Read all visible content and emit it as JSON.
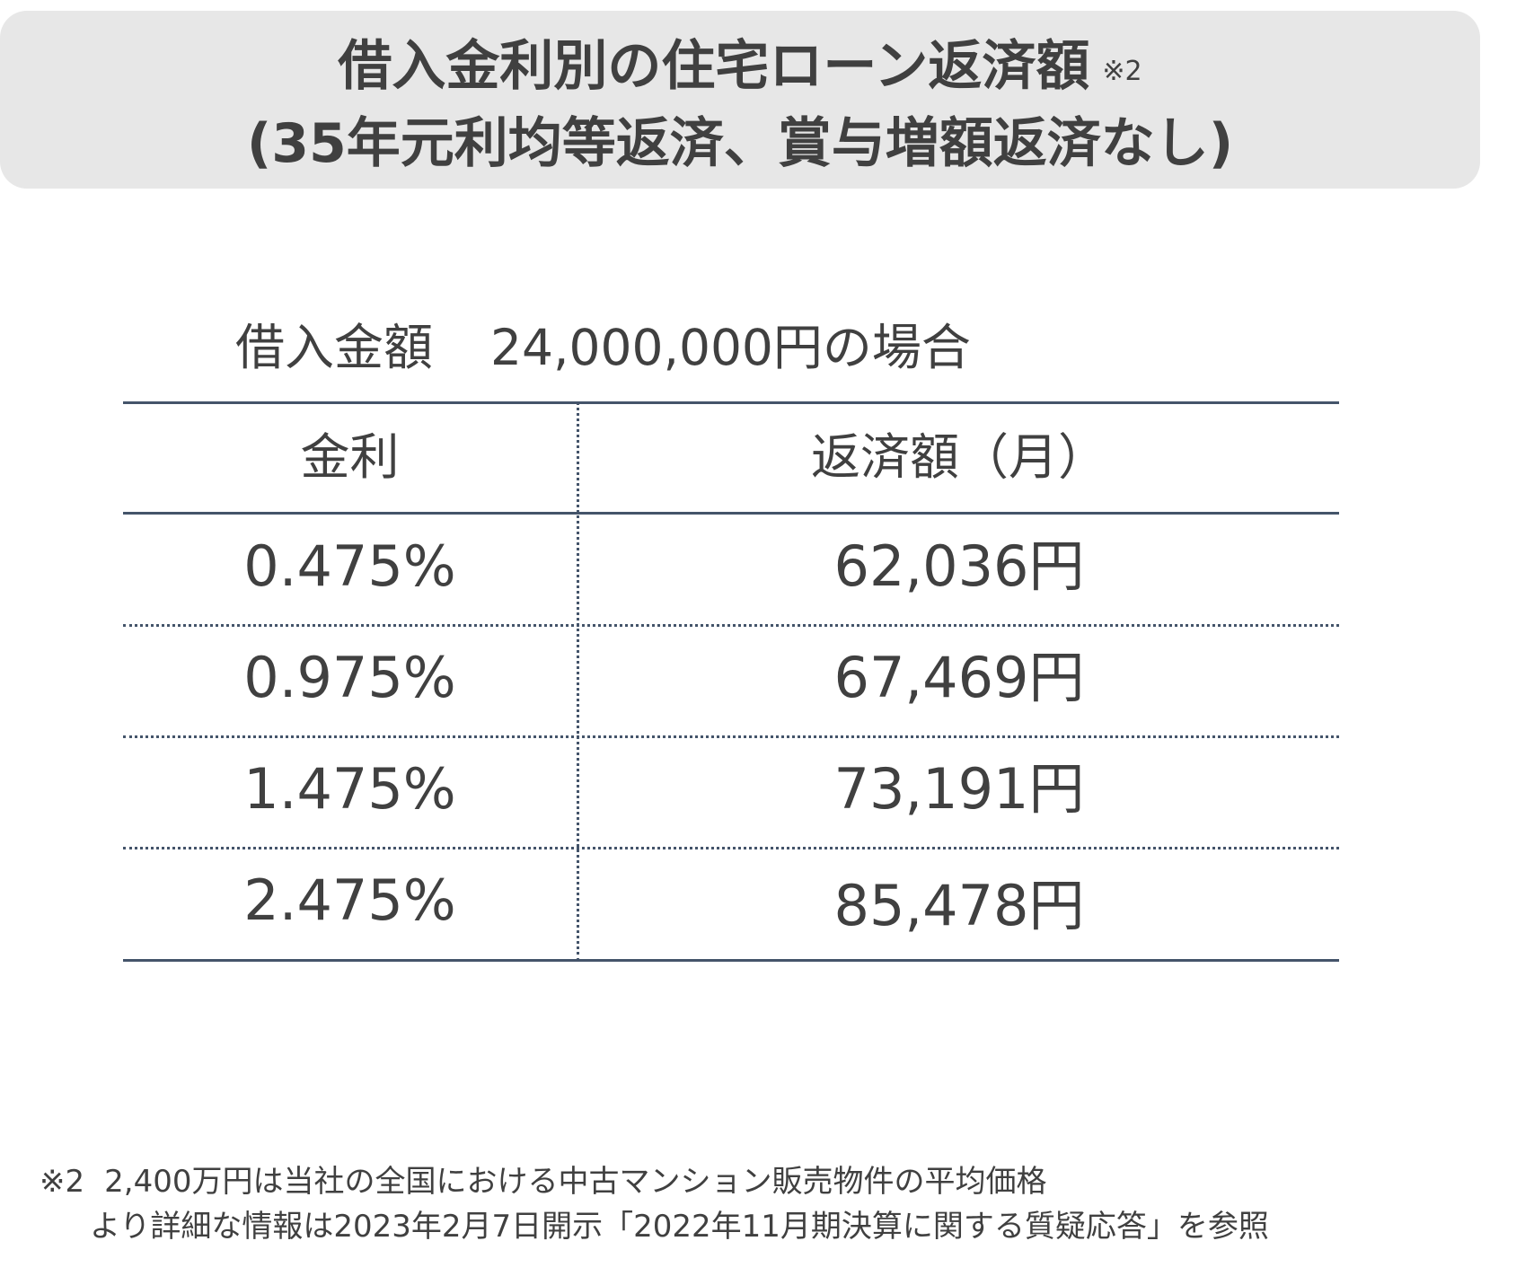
{
  "title": {
    "line1": "借入金利別の住宅ローン返済額",
    "note_mark": "※2",
    "line2": "(35年元利均等返済、賞与増額返済なし)"
  },
  "caption": {
    "label": "借入金額",
    "amount": "24,000,000円の場合"
  },
  "table": {
    "headers": {
      "rate": "金利",
      "payment": "返済額（月）"
    },
    "rows": [
      {
        "rate": "0.475%",
        "payment": "62,036円"
      },
      {
        "rate": "0.975%",
        "payment": "67,469円"
      },
      {
        "rate": "1.475%",
        "payment": "73,191円"
      },
      {
        "rate": "2.475%",
        "payment": "85,478円"
      }
    ]
  },
  "footnote": {
    "mark": "※2",
    "line1": "2,400万円は当社の全国における中古マンション販売物件の平均価格",
    "line2": "より詳細な情報は2023年2月7日開示「2022年11月期決算に関する質疑応答」を参照"
  },
  "colors": {
    "title_background": "#e7e7e7",
    "rule": "#44546a",
    "text": "#404040"
  }
}
